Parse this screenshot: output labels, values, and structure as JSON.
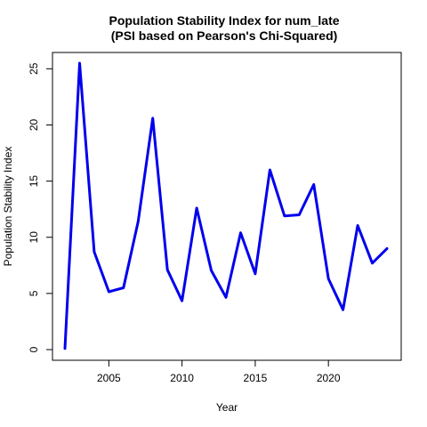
{
  "chart_data": {
    "type": "line",
    "title": "Population Stability Index for num_late",
    "subtitle": "(PSI based on Pearson's Chi-Squared)",
    "xlabel": "Year",
    "ylabel": "Population Stability Index",
    "x": [
      2002,
      2003,
      2004,
      2005,
      2006,
      2007,
      2008,
      2009,
      2010,
      2011,
      2012,
      2013,
      2014,
      2015,
      2016,
      2017,
      2018,
      2019,
      2020,
      2021,
      2022,
      2023,
      2024
    ],
    "series": [
      {
        "values": [
          0.1,
          25.5,
          8.7,
          5.15,
          5.5,
          11.4,
          20.6,
          7.1,
          4.35,
          12.6,
          7.05,
          4.65,
          10.4,
          6.75,
          16.0,
          11.9,
          12.0,
          14.7,
          6.3,
          3.55,
          11.05,
          7.7,
          9.0
        ],
        "color": "#0000ee"
      }
    ],
    "xlim": [
      2002,
      2024
    ],
    "ylim": [
      0,
      25.5
    ],
    "xticks": [
      2005,
      2010,
      2015,
      2020
    ],
    "yticks": [
      0,
      5,
      10,
      15,
      20,
      25
    ],
    "grid": false,
    "legend": "none"
  }
}
